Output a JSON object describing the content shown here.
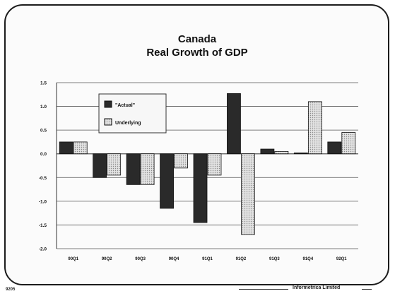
{
  "chart_data": {
    "type": "bar",
    "title": "Canada",
    "subtitle": "Real Growth of GDP",
    "categories": [
      "90Q1",
      "90Q2",
      "90Q3",
      "90Q4",
      "91Q1",
      "91Q2",
      "91Q3",
      "91Q4",
      "92Q1"
    ],
    "series": [
      {
        "name": "\"Actual\"",
        "values": [
          0.25,
          -0.5,
          -0.65,
          -1.15,
          -1.45,
          1.27,
          0.1,
          0.02,
          0.25
        ],
        "color": "#2a2a2a"
      },
      {
        "name": "Underlying",
        "values": [
          0.25,
          -0.45,
          -0.65,
          -0.3,
          -0.45,
          -1.7,
          0.05,
          1.1,
          0.45
        ],
        "color": "#d8d8d8"
      }
    ],
    "ylim": [
      -2.0,
      1.5
    ],
    "yticks": [
      "1.5",
      "1.0",
      "0.5",
      "0.0",
      "-0.5",
      "-1.0",
      "-1.5",
      "-2.0"
    ],
    "ytick_values": [
      1.5,
      1.0,
      0.5,
      0.0,
      -0.5,
      -1.0,
      -1.5,
      -2.0
    ],
    "grid": "horizontal",
    "legend_position": "top-left"
  },
  "footer": {
    "code": "9205",
    "company": "Informetrica Limited"
  }
}
